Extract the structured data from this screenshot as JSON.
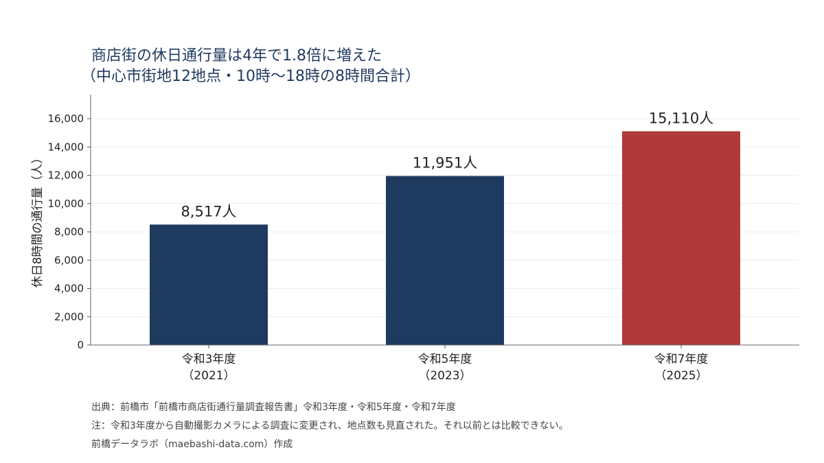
{
  "title_lines": [
    "商店街の休日通行量は4年で1.8倍に増えた",
    "（中心市街地12地点・10時〜18時の8時間合計）"
  ],
  "chart_data": {
    "type": "bar",
    "categories": [
      [
        "令和3年度",
        "（2021）"
      ],
      [
        "令和5年度",
        "（2023）"
      ],
      [
        "令和7年度",
        "（2025）"
      ]
    ],
    "values": [
      8517,
      11951,
      15110
    ],
    "value_labels": [
      "8,517人",
      "11,951人",
      "15,110人"
    ],
    "colors": [
      "#1f3a5f",
      "#1f3a5f",
      "#b0393a"
    ],
    "ylabel": "休日8時間の通行量（人）",
    "xlabel": "",
    "ylim": [
      0,
      17700
    ],
    "yticks": [
      0,
      2000,
      4000,
      6000,
      8000,
      10000,
      12000,
      14000,
      16000
    ],
    "ytick_labels": [
      "0",
      "2,000",
      "4,000",
      "6,000",
      "8,000",
      "10,000",
      "12,000",
      "14,000",
      "16,000"
    ],
    "grid": true
  },
  "notes": [
    "出典：前橋市「前橋市商店街通行量調査報告書」令和3年度・令和5年度・令和7年度",
    "注：令和3年度から自動撮影カメラによる調査に変更され、地点数も見直された。それ以前とは比較できない。",
    "前橋データラボ（maebashi-data.com）作成"
  ]
}
